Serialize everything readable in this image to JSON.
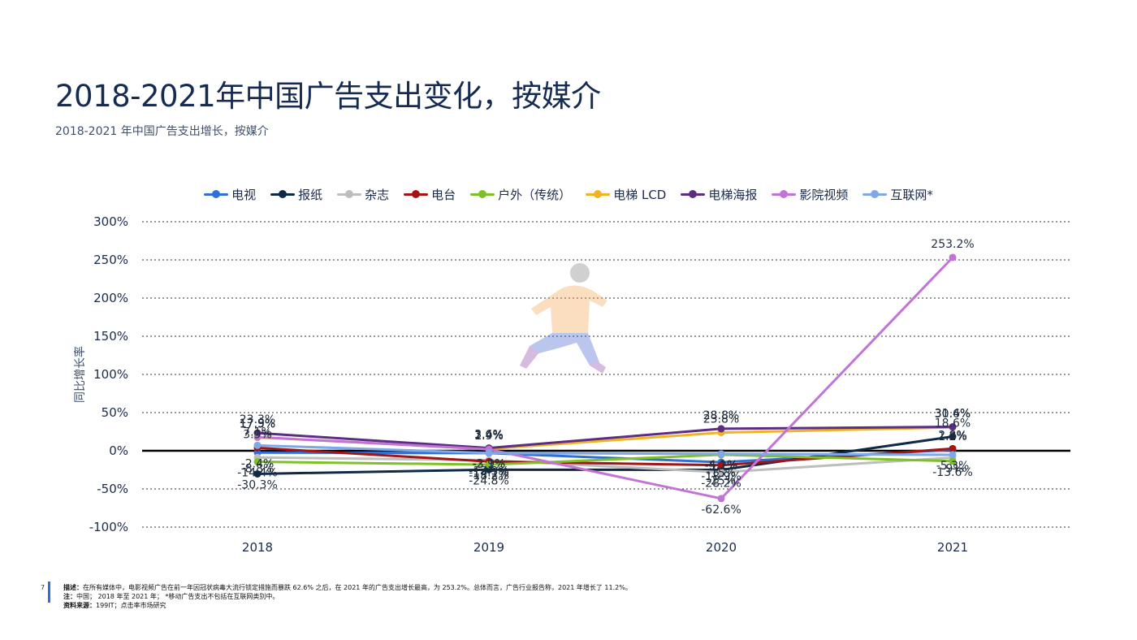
{
  "title": "2018-2021年中国广告支出变化，按媒介",
  "subtitle": "2018-2021 年中国广告支出增长，按媒介",
  "colors": {
    "zero_line": "#000000",
    "grid": "#333333",
    "accent": "#2f6fd6"
  },
  "footer": {
    "page_number": "7",
    "description_label": "描述：",
    "description": "在所有媒体中，电影视频广告在前一年因冠状病毒大流行锁定措施而暴跌 62.6% 之后，在 2021 年的广告支出增长最高，为 253.2%。总体而言，广告行业报告称，2021 年增长了 11.2%。",
    "note_label": "注：",
    "note": "中国； 2018 年至 2021 年； *移动广告支出不包括在互联网类别中。",
    "source_label": "资料来源：",
    "source": "199IT；点击率市场研究"
  },
  "chart_data": {
    "type": "line",
    "title": "",
    "xlabel": "",
    "ylabel": "同比增长率",
    "categories": [
      "2018",
      "2019",
      "2020",
      "2021"
    ],
    "ylim": [
      -100,
      300
    ],
    "yticks": [
      300,
      250,
      200,
      150,
      100,
      50,
      0,
      -50,
      -100
    ],
    "ytick_labels": [
      "300%",
      "250%",
      "200%",
      "150%",
      "100%",
      "50%",
      "0%",
      "-50%",
      "-100%"
    ],
    "grid": true,
    "legend_position": "top",
    "series": [
      {
        "name": "电视",
        "color": "#2f6fd6",
        "values": [
          -2.4,
          -3.1,
          -15.0,
          1.2
        ],
        "labels": [
          "-2.4%",
          "-3.1%",
          "-15%",
          "1.2%"
        ]
      },
      {
        "name": "报纸",
        "color": "#0e2a47",
        "values": [
          -30.3,
          -24.8,
          -25.0,
          18.6
        ],
        "labels": [
          "-30.3%",
          "-24.8%",
          "-25%",
          "18.6%"
        ]
      },
      {
        "name": "杂志",
        "color": "#bdbdbd",
        "values": [
          -8.8,
          -12.3,
          -28.2,
          -9.0
        ],
        "labels": [
          "-8.8%",
          "-12.3%",
          "-28.2%",
          "-9%"
        ]
      },
      {
        "name": "电台",
        "color": "#a31414",
        "values": [
          3.9,
          -14.1,
          -18.9,
          2.8
        ],
        "labels": [
          "3.9%",
          "-14.1%",
          "-18.9%",
          "2.8%"
        ]
      },
      {
        "name": "户外（传统）",
        "color": "#7fc02a",
        "values": [
          -14.4,
          -18.2,
          -5.2,
          -13.6
        ],
        "labels": [
          "-14.4%",
          "-18.2%",
          "-5.2%",
          "-13.6%"
        ]
      },
      {
        "name": "电梯 LCD",
        "color": "#f0b323",
        "values": [
          17.5,
          2.4,
          23.8,
          30.6
        ],
        "labels": [
          "17.5%",
          "2.4%",
          "23.8%",
          "30.6%"
        ]
      },
      {
        "name": "电梯海报",
        "color": "#5c2d82",
        "values": [
          23.3,
          3.6,
          28.8,
          31.4
        ],
        "labels": [
          "23.3%",
          "3.6%",
          "28.8%",
          "31.4%"
        ]
      },
      {
        "name": "影院视频",
        "color": "#c174d6",
        "values": [
          17.9,
          1.9,
          -62.6,
          253.2
        ],
        "labels": [
          "17.9%",
          "1.9%",
          "-62.6%",
          "253.2%"
        ]
      },
      {
        "name": "互联网*",
        "color": "#7ea8e6",
        "values": [
          7.1,
          -2.9,
          -4.1,
          -5.3
        ],
        "labels": [
          "7.1%",
          "-2.9%",
          "-4.1%",
          "-5.3%"
        ]
      }
    ]
  }
}
